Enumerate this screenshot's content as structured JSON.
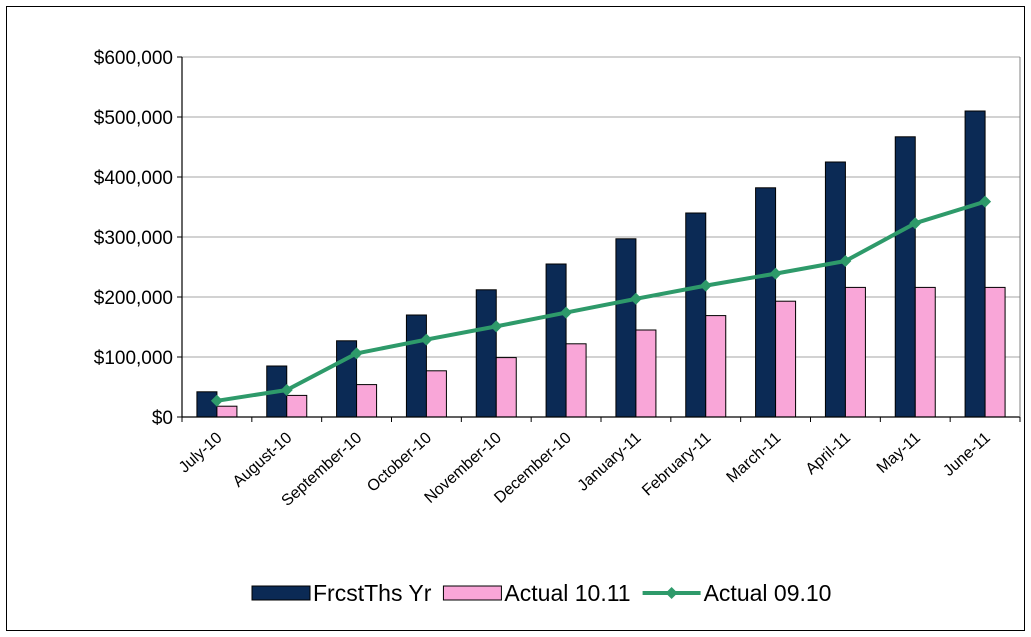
{
  "chart_data": {
    "type": "bar",
    "categories": [
      "July-10",
      "August-10",
      "September-10",
      "October-10",
      "November-10",
      "December-10",
      "January-11",
      "February-11",
      "March-11",
      "April-11",
      "May-11",
      "June-11"
    ],
    "series": [
      {
        "name": "FrcstThs Yr",
        "kind": "bar",
        "color": "#0b2a55",
        "values": [
          42000,
          85000,
          127000,
          170000,
          212000,
          255000,
          297000,
          340000,
          382000,
          425000,
          467000,
          510000
        ]
      },
      {
        "name": "Actual 10.11",
        "kind": "bar",
        "color": "#f9a6d8",
        "values": [
          18000,
          36000,
          54000,
          77000,
          99000,
          122000,
          145000,
          169000,
          193000,
          216000,
          216000,
          216000
        ]
      },
      {
        "name": "Actual 09.10",
        "kind": "line",
        "color": "#2e9a6a",
        "values": [
          27000,
          45000,
          106000,
          129000,
          151000,
          174000,
          197000,
          219000,
          239000,
          260000,
          323000,
          359000
        ]
      }
    ],
    "yticks": [
      "$0",
      "$100,000",
      "$200,000",
      "$300,000",
      "$400,000",
      "$500,000",
      "$600,000"
    ],
    "ylim": [
      0,
      600000
    ],
    "grid": true,
    "legend_position": "bottom"
  }
}
